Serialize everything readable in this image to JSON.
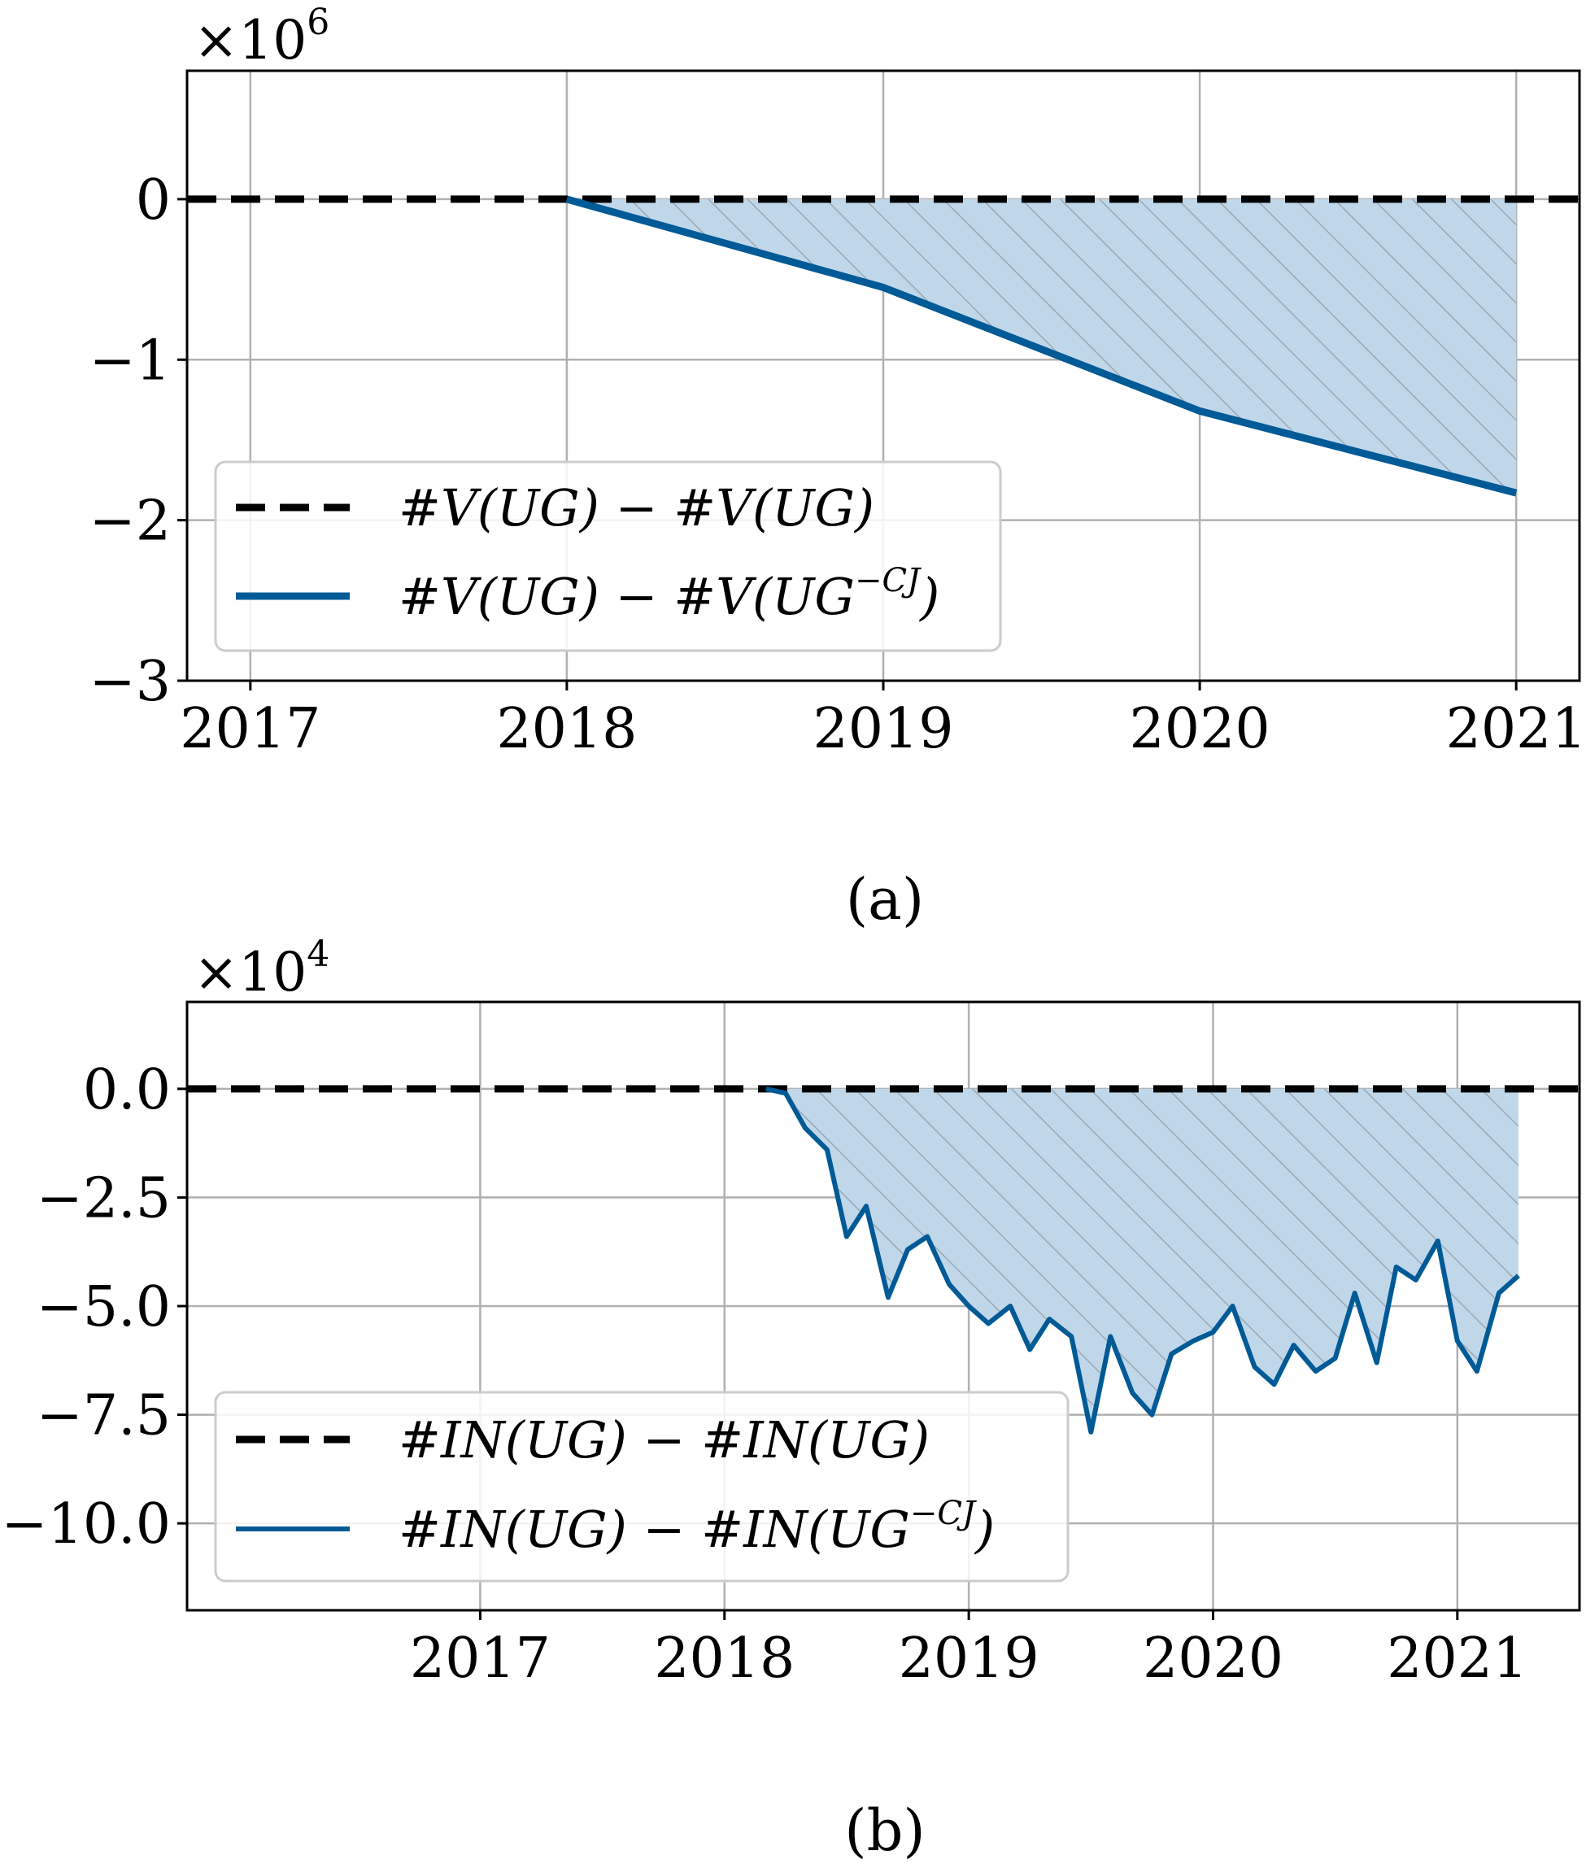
{
  "chart_data": [
    {
      "type": "area",
      "caption": "(a)",
      "y_multiplier": {
        "base": "×10",
        "exp": "6"
      },
      "xlim": [
        2016.8,
        2021.2
      ],
      "ylim": [
        -3,
        0.8
      ],
      "xticks": [
        2017,
        2018,
        2019,
        2020,
        2021
      ],
      "xtick_labels": [
        "2017",
        "2018",
        "2019",
        "2020",
        "2021"
      ],
      "yticks": [
        0,
        -1,
        -2,
        -3
      ],
      "ytick_labels": [
        "0",
        "−1",
        "−2",
        "−3"
      ],
      "grid": true,
      "legend_position": "lower-left",
      "fill": {
        "color": "#c0d7ea",
        "hatch": "////",
        "hatch_color": "#9aa8b4"
      },
      "series": [
        {
          "name": "#V(UG) − #V(UG)",
          "style": "dashed",
          "color": "#000000",
          "x": [
            2016.8,
            2021.2
          ],
          "y": [
            0,
            0
          ]
        },
        {
          "name": "#V(UG) − #V(UG^{−CJ})",
          "style": "solid",
          "color": "#005a96",
          "x": [
            2018,
            2019,
            2020,
            2021
          ],
          "y": [
            0,
            -0.55,
            -1.32,
            -1.83
          ]
        }
      ],
      "legend": [
        {
          "main": "#V(UG) − #V(UG)",
          "sup": ""
        },
        {
          "main": "#V(UG) − #V(UG",
          "sup": "−CJ",
          "close": ")"
        }
      ]
    },
    {
      "type": "area",
      "caption": "(b)",
      "y_multiplier": {
        "base": "×10",
        "exp": "4"
      },
      "xlim": [
        2015.8,
        2021.5
      ],
      "ylim": [
        -12.0,
        2.0
      ],
      "xticks": [
        2017,
        2018,
        2019,
        2020,
        2021
      ],
      "xtick_labels": [
        "2017",
        "2018",
        "2019",
        "2020",
        "2021"
      ],
      "yticks": [
        0.0,
        -2.5,
        -5.0,
        -7.5,
        -10.0
      ],
      "ytick_labels": [
        "0.0",
        "−2.5",
        "−5.0",
        "−7.5",
        "−10.0"
      ],
      "grid": true,
      "legend_position": "lower-left",
      "fill": {
        "color": "#c0d7ea",
        "hatch": "////",
        "hatch_color": "#9aa8b4"
      },
      "series": [
        {
          "name": "#IN(UG) − #IN(UG)",
          "style": "dashed",
          "color": "#000000",
          "x": [
            2015.8,
            2021.5
          ],
          "y": [
            0,
            0
          ]
        },
        {
          "name": "#IN(UG) − #IN(UG^{−CJ})",
          "style": "solid",
          "color": "#005a96",
          "x": [
            2018.17,
            2018.25,
            2018.33,
            2018.42,
            2018.5,
            2018.58,
            2018.67,
            2018.75,
            2018.83,
            2018.92,
            2019.0,
            2019.08,
            2019.17,
            2019.25,
            2019.33,
            2019.42,
            2019.5,
            2019.58,
            2019.67,
            2019.75,
            2019.83,
            2019.92,
            2020.0,
            2020.08,
            2020.17,
            2020.25,
            2020.33,
            2020.42,
            2020.5,
            2020.58,
            2020.67,
            2020.75,
            2020.83,
            2020.92,
            2021.0,
            2021.08,
            2021.17,
            2021.25
          ],
          "y": [
            0.0,
            -0.1,
            -0.9,
            -1.4,
            -3.4,
            -2.7,
            -4.8,
            -3.7,
            -3.4,
            -4.5,
            -5.0,
            -5.4,
            -5.0,
            -6.0,
            -5.3,
            -5.7,
            -7.9,
            -5.7,
            -7.0,
            -7.5,
            -6.1,
            -5.8,
            -5.6,
            -5.0,
            -6.4,
            -6.8,
            -5.9,
            -6.5,
            -6.2,
            -4.7,
            -6.3,
            -4.1,
            -4.4,
            -3.5,
            -5.8,
            -6.5,
            -4.7,
            -4.3
          ]
        }
      ],
      "legend": [
        {
          "main": "#IN(UG) − #IN(UG)",
          "sup": ""
        },
        {
          "main": "#IN(UG) − #IN(UG",
          "sup": "−CJ",
          "close": ")"
        }
      ]
    }
  ]
}
